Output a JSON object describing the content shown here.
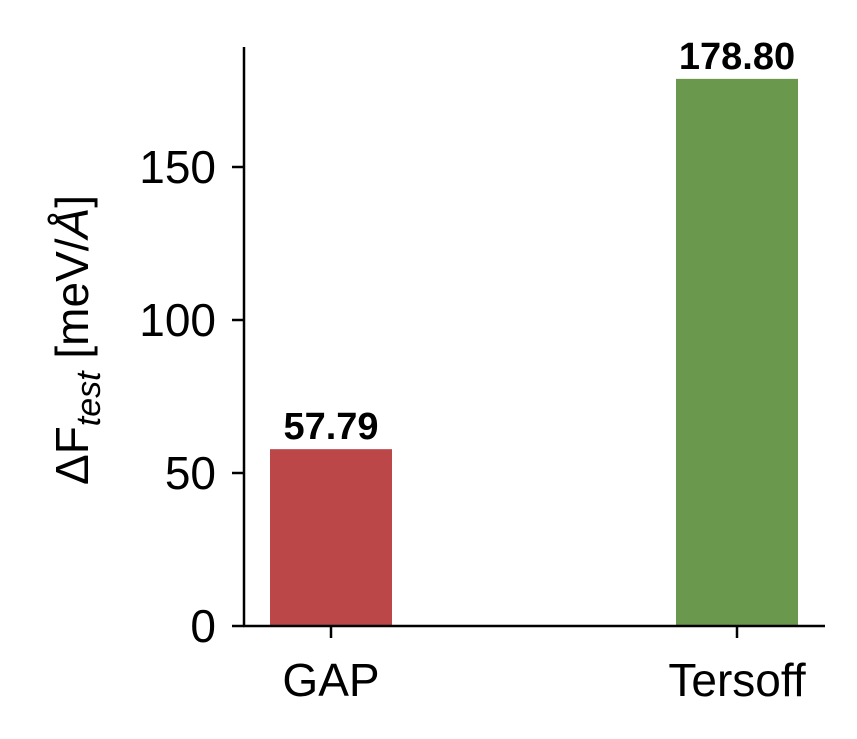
{
  "chart_data": {
    "type": "bar",
    "title": "",
    "xlabel": "",
    "ylabel": "ΔF_test [meV/Å]",
    "ylabel_parts": {
      "main": "ΔF",
      "subscript": "test",
      "unit": " [meV/",
      "unit_italic": "Å",
      "unit_close": "]"
    },
    "categories": [
      "GAP",
      "Tersoff"
    ],
    "values": [
      57.79,
      178.8
    ],
    "value_labels": [
      "57.79",
      "178.80"
    ],
    "colors": [
      "#bc4749",
      "#6a994e"
    ],
    "ylim": [
      0,
      188
    ],
    "yticks": [
      0,
      50,
      100,
      150
    ],
    "ytick_labels": [
      "0",
      "50",
      "100",
      "150"
    ],
    "grid": false,
    "legend": "none"
  }
}
